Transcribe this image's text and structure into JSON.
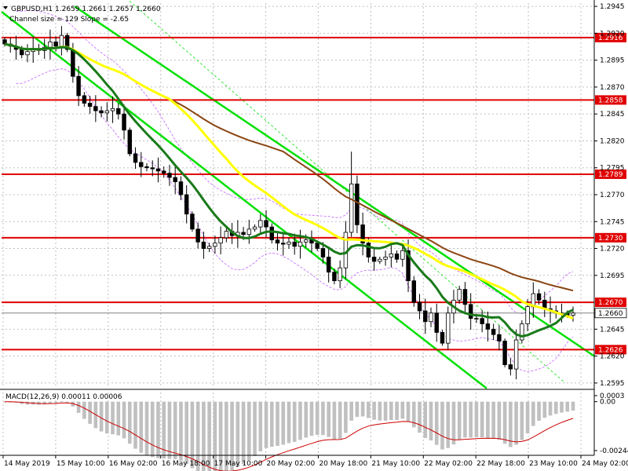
{
  "header": {
    "symbol_line": "GBPUSD,H1  1.2659 1.2661 1.2657 1.2660",
    "channel_line": "Channel size = 129 Slope = -2.65",
    "macd_label": "MACD(12,26,9) 0.00011 0.00006"
  },
  "colors": {
    "background": "#ffffff",
    "grid": "#c0c0c0",
    "level_line": "#e00000",
    "yellow_ma": "#ffff00",
    "green_ma": "#1a7a1a",
    "brown_ma": "#8b4513",
    "channel": "#00e000",
    "envelope": "#c060ff",
    "macd_hist": "#c0c0c0",
    "macd_signal": "#cc0000"
  },
  "chart_data": [
    {
      "type": "candlestick",
      "symbol": "GBPUSD",
      "timeframe": "H1",
      "ylim": [
        1.2592,
        1.2948
      ],
      "yticks": [
        "1.2945",
        "1.2920",
        "1.2895",
        "1.2870",
        "1.2845",
        "1.2820",
        "1.2795",
        "1.2770",
        "1.2745",
        "1.2720",
        "1.2695",
        "1.2645",
        "1.2620",
        "1.2595"
      ],
      "levels": [
        {
          "value": 1.2916,
          "label": "1.2916"
        },
        {
          "value": 1.2858,
          "label": "1.2858"
        },
        {
          "value": 1.2789,
          "label": "1.2789"
        },
        {
          "value": 1.273,
          "label": "1.2730"
        },
        {
          "value": 1.267,
          "label": "1.2670"
        },
        {
          "value": 1.2626,
          "label": "1.2626"
        }
      ],
      "current_price": {
        "value": 1.266,
        "label": "1.2660"
      },
      "x_labels": [
        "14 May 2019",
        "15 May 10:00",
        "16 May 02:00",
        "16 May 18:00",
        "17 May 10:00",
        "20 May 02:00",
        "20 May 18:00",
        "21 May 10:00",
        "22 May 02:00",
        "22 May 18:00",
        "23 May 10:00",
        "24 May 02:00"
      ],
      "close_series": [
        1.291,
        1.2908,
        1.2905,
        1.29,
        1.2903,
        1.2906,
        1.2904,
        1.2907,
        1.2912,
        1.2908,
        1.2918,
        1.2905,
        1.288,
        1.2862,
        1.2855,
        1.2852,
        1.2848,
        1.2846,
        1.2848,
        1.285,
        1.2845,
        1.283,
        1.2808,
        1.28,
        1.2796,
        1.2795,
        1.2794,
        1.2792,
        1.279,
        1.2786,
        1.2782,
        1.277,
        1.2752,
        1.2738,
        1.2726,
        1.272,
        1.2722,
        1.2725,
        1.273,
        1.2736,
        1.2732,
        1.2735,
        1.2733,
        1.2738,
        1.274,
        1.2746,
        1.274,
        1.2728,
        1.2725,
        1.2724,
        1.2726,
        1.2722,
        1.2726,
        1.2728,
        1.2725,
        1.272,
        1.2712,
        1.2698,
        1.269,
        1.2702,
        1.2735,
        1.278,
        1.2742,
        1.2725,
        1.2712,
        1.2708,
        1.271,
        1.2712,
        1.2715,
        1.271,
        1.2718,
        1.269,
        1.267,
        1.2662,
        1.2652,
        1.266,
        1.2642,
        1.2632,
        1.266,
        1.2672,
        1.2682,
        1.2668,
        1.2655,
        1.2655,
        1.265,
        1.2645,
        1.264,
        1.2634,
        1.2612,
        1.2608,
        1.2635,
        1.265,
        1.2666,
        1.2678,
        1.2672,
        1.2664,
        1.2662,
        1.266,
        1.266,
        1.2658,
        1.266
      ]
    },
    {
      "type": "histogram",
      "indicator": "MACD(12,26,9)",
      "ylim": [
        -0.00244,
        0.0003
      ],
      "yticks": [
        "0.0003",
        "0.00",
        "-0.00244"
      ]
    }
  ]
}
